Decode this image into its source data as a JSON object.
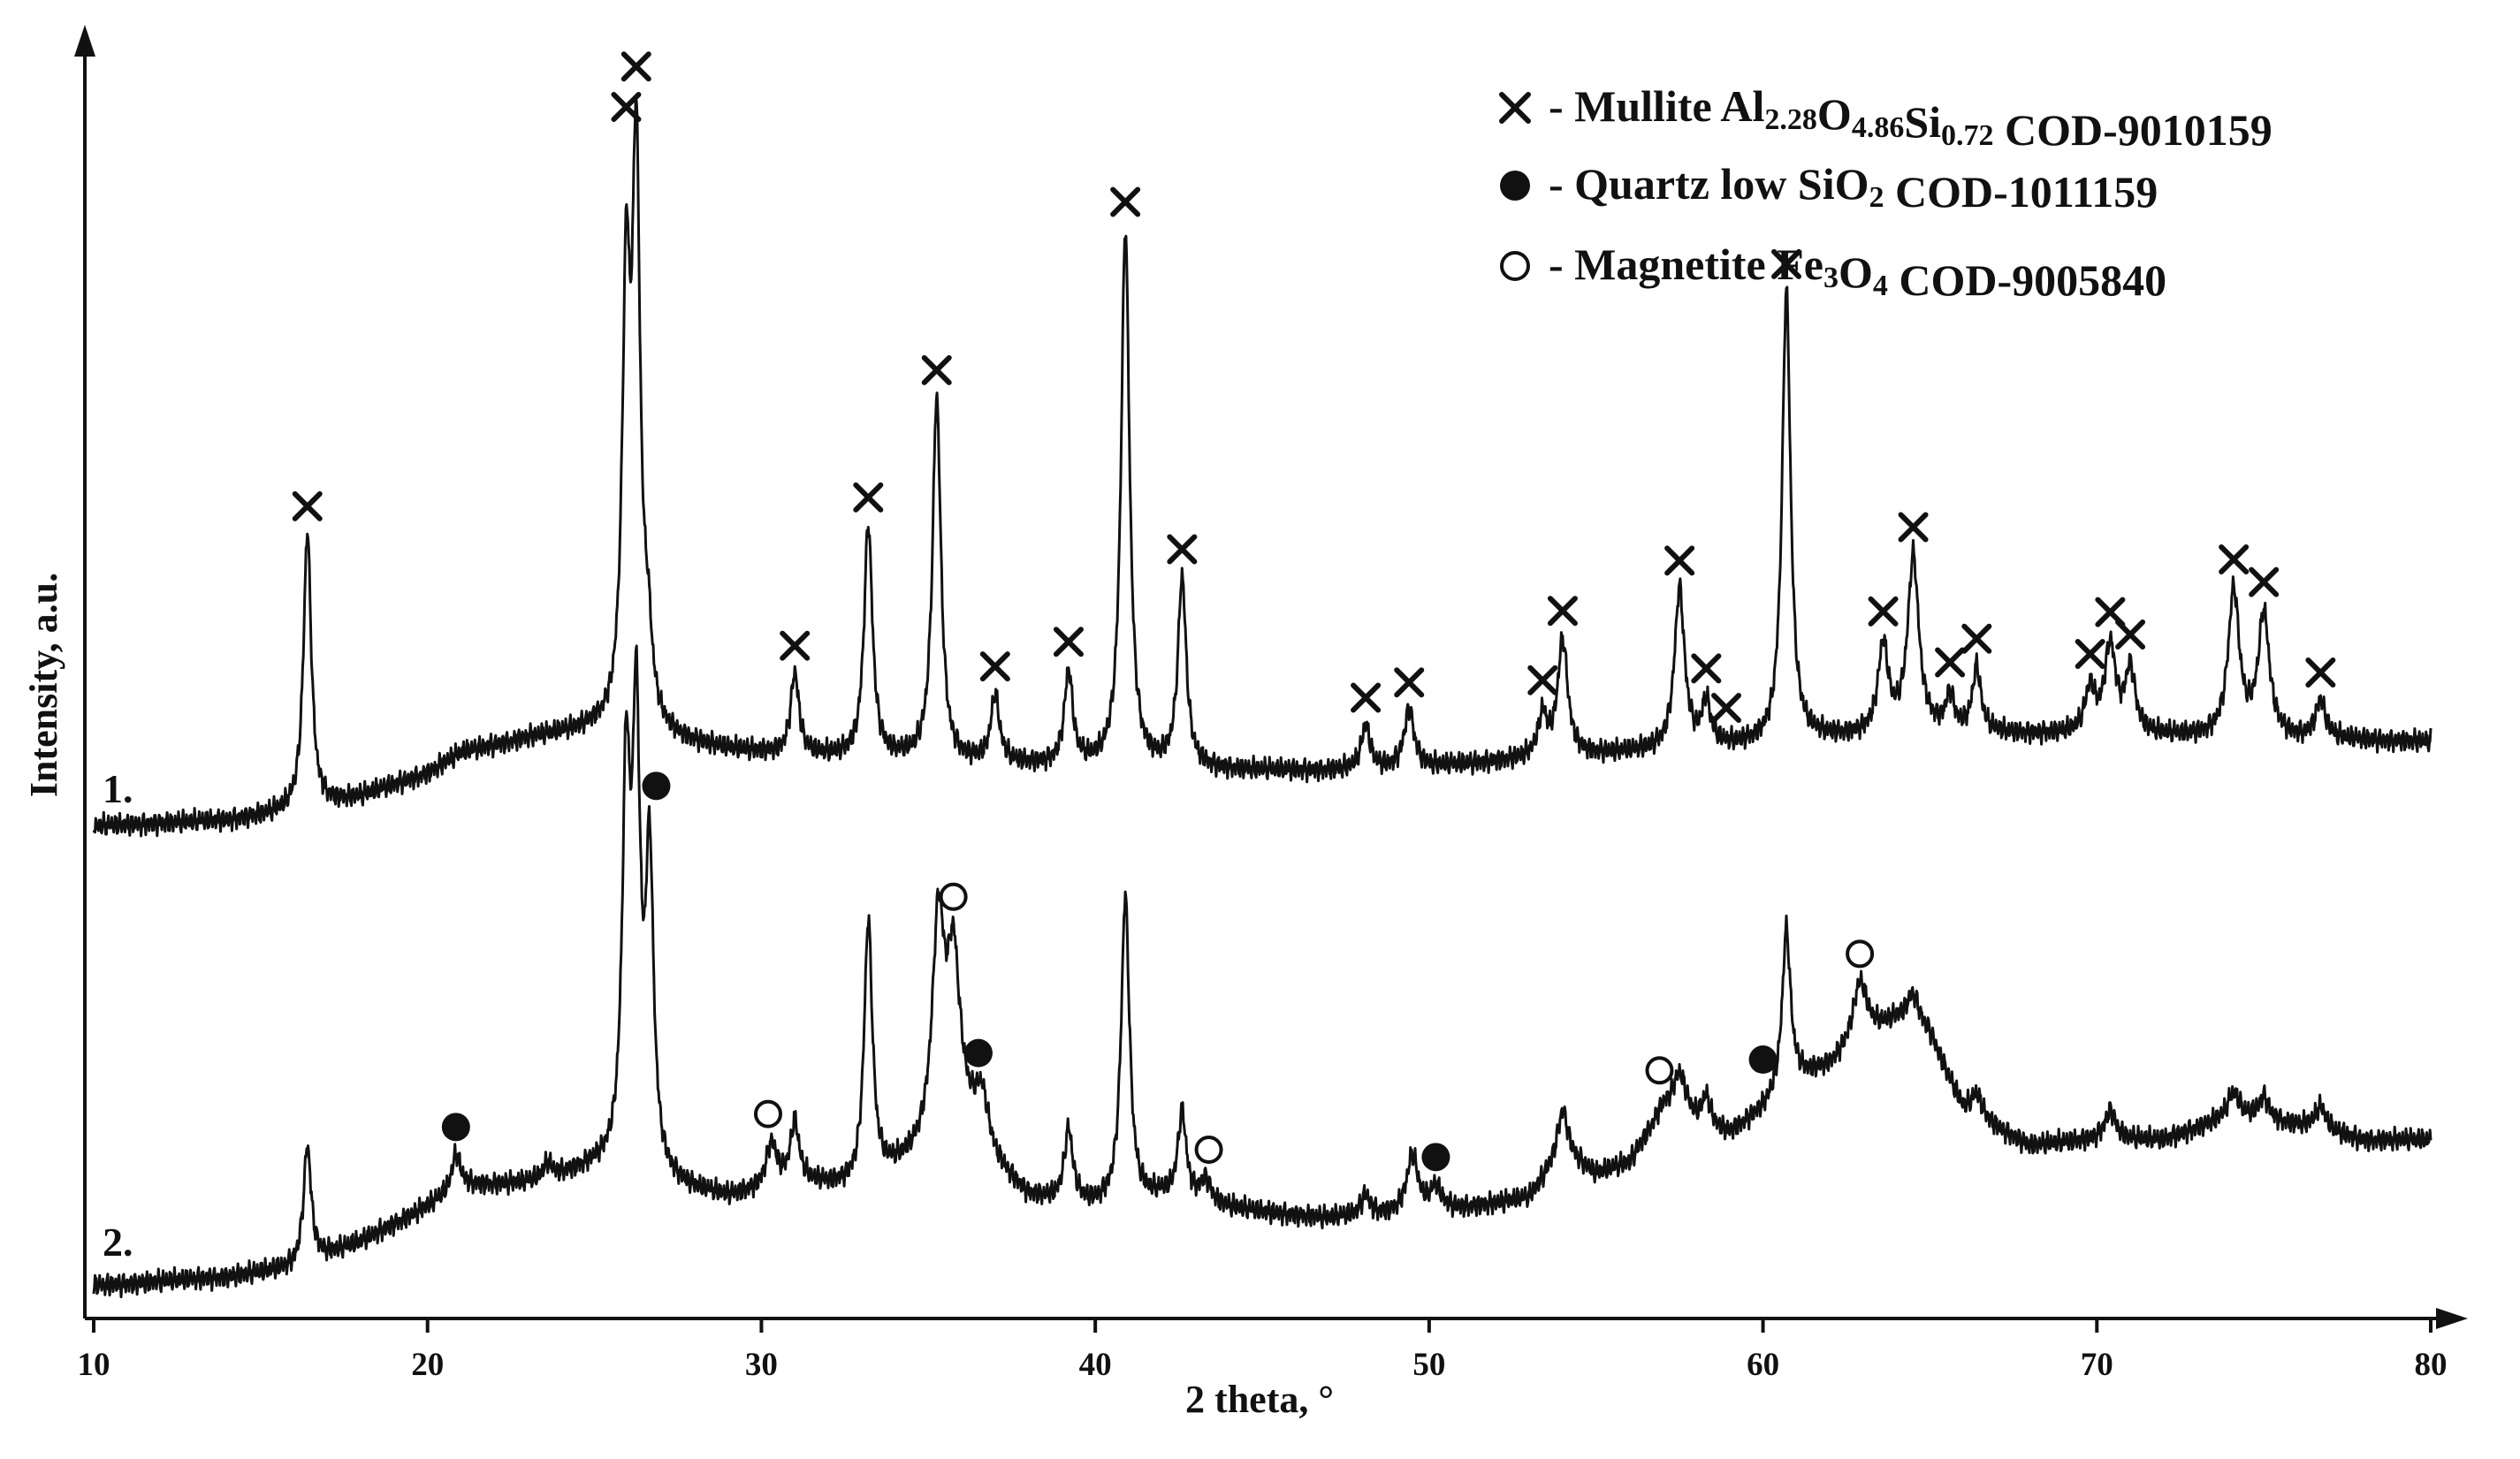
{
  "chart_data": {
    "type": "line",
    "xlabel": "2 theta, °",
    "ylabel": "Intensity, a.u.",
    "xlim": [
      10,
      80
    ],
    "x_ticks": [
      "10",
      "20",
      "30",
      "40",
      "50",
      "60",
      "70",
      "80"
    ],
    "grid": false,
    "legend_position": "top-right",
    "colors": {
      "line": "#111111",
      "background": "#ffffff"
    },
    "legend": [
      {
        "marker": "cross",
        "dash": " - ",
        "parts": [
          {
            "t": "Mullite Al",
            "s": false
          },
          {
            "t": "2.28",
            "s": true
          },
          {
            "t": "O",
            "s": false
          },
          {
            "t": "4.86",
            "s": true
          },
          {
            "t": "Si",
            "s": false
          },
          {
            "t": "0.72",
            "s": true
          },
          {
            "t": " COD-9010159",
            "s": false
          }
        ]
      },
      {
        "marker": "filled-circle",
        "dash": " - ",
        "parts": [
          {
            "t": "Quartz low SiO",
            "s": false
          },
          {
            "t": "2",
            "s": true
          },
          {
            "t": " COD-1011159",
            "s": false
          }
        ]
      },
      {
        "marker": "open-circle",
        "dash": " - ",
        "parts": [
          {
            "t": "Magnetite Fe",
            "s": false
          },
          {
            "t": "3",
            "s": true
          },
          {
            "t": "O",
            "s": false
          },
          {
            "t": "4",
            "s": true
          },
          {
            "t": " COD-9005840",
            "s": false
          }
        ]
      }
    ],
    "series": [
      {
        "label": "1.",
        "intensity_scale": "relative units (arbitrary)",
        "baseline": [
          [
            10,
            0
          ],
          [
            14,
            0.02
          ],
          [
            16,
            0.05
          ],
          [
            18,
            0.1
          ],
          [
            20,
            0.18
          ],
          [
            21,
            0.25
          ],
          [
            23,
            0.3
          ],
          [
            25,
            0.33
          ],
          [
            27,
            0.3
          ],
          [
            29,
            0.26
          ],
          [
            31,
            0.24
          ],
          [
            35,
            0.22
          ],
          [
            40,
            0.2
          ],
          [
            45,
            0.19
          ],
          [
            47,
            0.19
          ],
          [
            50,
            0.2
          ],
          [
            53,
            0.23
          ],
          [
            56,
            0.25
          ],
          [
            59,
            0.27
          ],
          [
            62,
            0.3
          ],
          [
            65,
            0.32
          ],
          [
            70,
            0.31
          ],
          [
            75,
            0.3
          ],
          [
            80,
            0.29
          ]
        ],
        "peaks": [
          {
            "x": 16.4,
            "h": 0.95,
            "w": 0.14
          },
          {
            "x": 25.95,
            "h": 1.45,
            "w": 0.14
          },
          {
            "x": 26.25,
            "h": 1.9,
            "w": 0.14
          },
          {
            "x": 26.6,
            "h": 0.25,
            "w": 0.15
          },
          {
            "x": 31.0,
            "h": 0.28,
            "w": 0.15
          },
          {
            "x": 33.2,
            "h": 0.8,
            "w": 0.15
          },
          {
            "x": 35.25,
            "h": 1.25,
            "w": 0.15
          },
          {
            "x": 37.0,
            "h": 0.23,
            "w": 0.15
          },
          {
            "x": 39.2,
            "h": 0.32,
            "w": 0.15
          },
          {
            "x": 40.9,
            "h": 1.85,
            "w": 0.15
          },
          {
            "x": 42.6,
            "h": 0.65,
            "w": 0.15
          },
          {
            "x": 48.1,
            "h": 0.15,
            "w": 0.15
          },
          {
            "x": 49.4,
            "h": 0.2,
            "w": 0.18
          },
          {
            "x": 53.4,
            "h": 0.14,
            "w": 0.15
          },
          {
            "x": 54.0,
            "h": 0.4,
            "w": 0.18
          },
          {
            "x": 57.5,
            "h": 0.55,
            "w": 0.18
          },
          {
            "x": 58.3,
            "h": 0.15,
            "w": 0.15
          },
          {
            "x": 60.7,
            "h": 1.55,
            "w": 0.15
          },
          {
            "x": 63.6,
            "h": 0.3,
            "w": 0.18
          },
          {
            "x": 64.5,
            "h": 0.6,
            "w": 0.2
          },
          {
            "x": 65.6,
            "h": 0.12,
            "w": 0.15
          },
          {
            "x": 66.4,
            "h": 0.22,
            "w": 0.15
          },
          {
            "x": 69.8,
            "h": 0.15,
            "w": 0.18
          },
          {
            "x": 70.4,
            "h": 0.3,
            "w": 0.2
          },
          {
            "x": 71.0,
            "h": 0.22,
            "w": 0.18
          },
          {
            "x": 74.1,
            "h": 0.5,
            "w": 0.2
          },
          {
            "x": 75.0,
            "h": 0.42,
            "w": 0.2
          },
          {
            "x": 76.7,
            "h": 0.13,
            "w": 0.18
          }
        ]
      },
      {
        "label": "2.",
        "intensity_scale": "relative units (arbitrary)",
        "baseline": [
          [
            10,
            0
          ],
          [
            14,
            0.03
          ],
          [
            16,
            0.06
          ],
          [
            18,
            0.15
          ],
          [
            20,
            0.27
          ],
          [
            21,
            0.34
          ],
          [
            23,
            0.35
          ],
          [
            25,
            0.4
          ],
          [
            27,
            0.35
          ],
          [
            28,
            0.32
          ],
          [
            29,
            0.3
          ],
          [
            30,
            0.32
          ],
          [
            31,
            0.35
          ],
          [
            33,
            0.33
          ],
          [
            35,
            0.45
          ],
          [
            36,
            0.55
          ],
          [
            37,
            0.4
          ],
          [
            38,
            0.3
          ],
          [
            39,
            0.28
          ],
          [
            40,
            0.27
          ],
          [
            41,
            0.28
          ],
          [
            42,
            0.3
          ],
          [
            43,
            0.28
          ],
          [
            45,
            0.25
          ],
          [
            47,
            0.23
          ],
          [
            48,
            0.24
          ],
          [
            50,
            0.25
          ],
          [
            52,
            0.28
          ],
          [
            53,
            0.3
          ],
          [
            54,
            0.45
          ],
          [
            55,
            0.38
          ],
          [
            56,
            0.42
          ],
          [
            57,
            0.6
          ],
          [
            58,
            0.55
          ],
          [
            59,
            0.52
          ],
          [
            60,
            0.6
          ],
          [
            61,
            0.7
          ],
          [
            62,
            0.75
          ],
          [
            63,
            0.85
          ],
          [
            64,
            0.9
          ],
          [
            65,
            0.85
          ],
          [
            66,
            0.6
          ],
          [
            68,
            0.48
          ],
          [
            70,
            0.5
          ],
          [
            72,
            0.5
          ],
          [
            74,
            0.58
          ],
          [
            76,
            0.55
          ],
          [
            78,
            0.5
          ],
          [
            80,
            0.5
          ]
        ],
        "peaks": [
          {
            "x": 16.4,
            "h": 0.4,
            "w": 0.14
          },
          {
            "x": 20.85,
            "h": 0.12,
            "w": 0.15
          },
          {
            "x": 23.6,
            "h": 0.05,
            "w": 0.15
          },
          {
            "x": 25.95,
            "h": 1.3,
            "w": 0.14
          },
          {
            "x": 26.25,
            "h": 1.45,
            "w": 0.14
          },
          {
            "x": 26.65,
            "h": 1.05,
            "w": 0.14
          },
          {
            "x": 30.3,
            "h": 0.15,
            "w": 0.2
          },
          {
            "x": 31.0,
            "h": 0.2,
            "w": 0.15
          },
          {
            "x": 33.2,
            "h": 0.9,
            "w": 0.15
          },
          {
            "x": 35.3,
            "h": 0.75,
            "w": 0.22
          },
          {
            "x": 35.75,
            "h": 0.55,
            "w": 0.22
          },
          {
            "x": 36.6,
            "h": 0.18,
            "w": 0.25
          },
          {
            "x": 39.2,
            "h": 0.25,
            "w": 0.15
          },
          {
            "x": 40.9,
            "h": 1.05,
            "w": 0.15
          },
          {
            "x": 42.6,
            "h": 0.3,
            "w": 0.15
          },
          {
            "x": 43.3,
            "h": 0.08,
            "w": 0.2
          },
          {
            "x": 48.1,
            "h": 0.07,
            "w": 0.15
          },
          {
            "x": 49.5,
            "h": 0.2,
            "w": 0.2
          },
          {
            "x": 50.2,
            "h": 0.08,
            "w": 0.2
          },
          {
            "x": 54.0,
            "h": 0.15,
            "w": 0.2
          },
          {
            "x": 57.5,
            "h": 0.15,
            "w": 0.25
          },
          {
            "x": 58.3,
            "h": 0.1,
            "w": 0.15
          },
          {
            "x": 60.7,
            "h": 0.55,
            "w": 0.15
          },
          {
            "x": 62.9,
            "h": 0.2,
            "w": 0.25
          },
          {
            "x": 64.5,
            "h": 0.12,
            "w": 0.25
          },
          {
            "x": 66.4,
            "h": 0.08,
            "w": 0.2
          },
          {
            "x": 70.4,
            "h": 0.1,
            "w": 0.2
          },
          {
            "x": 74.1,
            "h": 0.08,
            "w": 0.2
          },
          {
            "x": 75.0,
            "h": 0.08,
            "w": 0.2
          },
          {
            "x": 76.7,
            "h": 0.08,
            "w": 0.2
          }
        ]
      }
    ],
    "phase_markers": [
      {
        "series": 0,
        "phase": "mullite",
        "x": [
          16.4,
          25.95,
          26.25,
          31.0,
          33.2,
          35.25,
          37.0,
          39.2,
          40.9,
          42.6,
          48.1,
          49.4,
          53.4,
          54.0,
          57.5,
          58.3,
          58.9,
          60.7,
          63.6,
          64.5,
          65.6,
          66.4,
          69.8,
          70.4,
          71.0,
          74.1,
          75.0,
          76.7
        ]
      },
      {
        "series": 1,
        "phase": "quartz",
        "x": [
          20.85,
          26.85,
          36.5,
          50.2,
          60.0
        ]
      },
      {
        "series": 1,
        "phase": "magnetite",
        "x": [
          30.2,
          35.75,
          43.4,
          56.9,
          62.9
        ]
      }
    ]
  }
}
